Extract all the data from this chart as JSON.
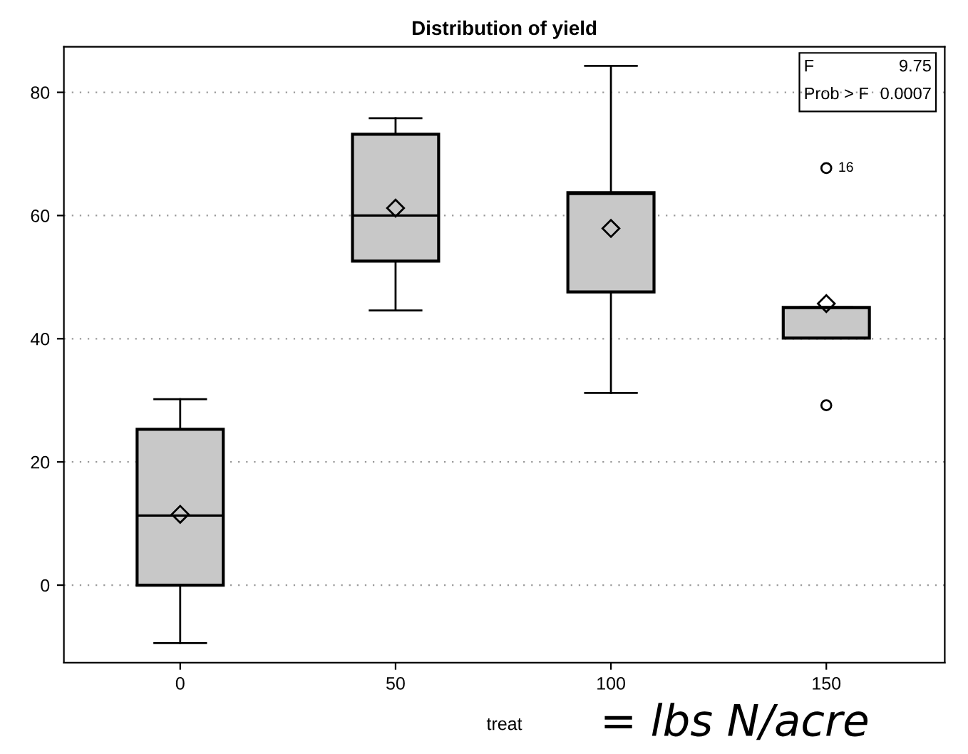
{
  "chart_data": {
    "type": "box",
    "title": "Distribution of yield",
    "xlabel": "treat",
    "x": [
      0,
      50,
      100,
      150
    ],
    "boxes": [
      {
        "low": -9.4,
        "q1": 0,
        "median": 11.3,
        "q3": 25.3,
        "high": 30.2,
        "mean": 11.5
      },
      {
        "low": 44.6,
        "q1": 52.6,
        "median": 60,
        "q3": 73.2,
        "high": 75.8,
        "mean": 61.2
      },
      {
        "low": 31.2,
        "q1": 47.6,
        "median": 63.5,
        "q3": 63.7,
        "high": 84.3,
        "mean": 57.9
      },
      {
        "low": 40.1,
        "q1": 40.1,
        "median": 45,
        "q3": 45.1,
        "high": 45.1,
        "mean": 45.7,
        "outliers": [
          67.7,
          29.2
        ]
      }
    ],
    "color": "#c8c8c8",
    "xlim": [
      -27,
      177.5
    ],
    "xticks": [
      0,
      50,
      100,
      150
    ],
    "ylim": [
      -12.6,
      87.4
    ],
    "yticks": [
      0,
      20,
      40,
      60,
      80
    ],
    "grid": "y",
    "annotations": [
      "F",
      "9.75",
      "Prob > F",
      "0.0007",
      "= lbs N/acre",
      "16"
    ]
  }
}
